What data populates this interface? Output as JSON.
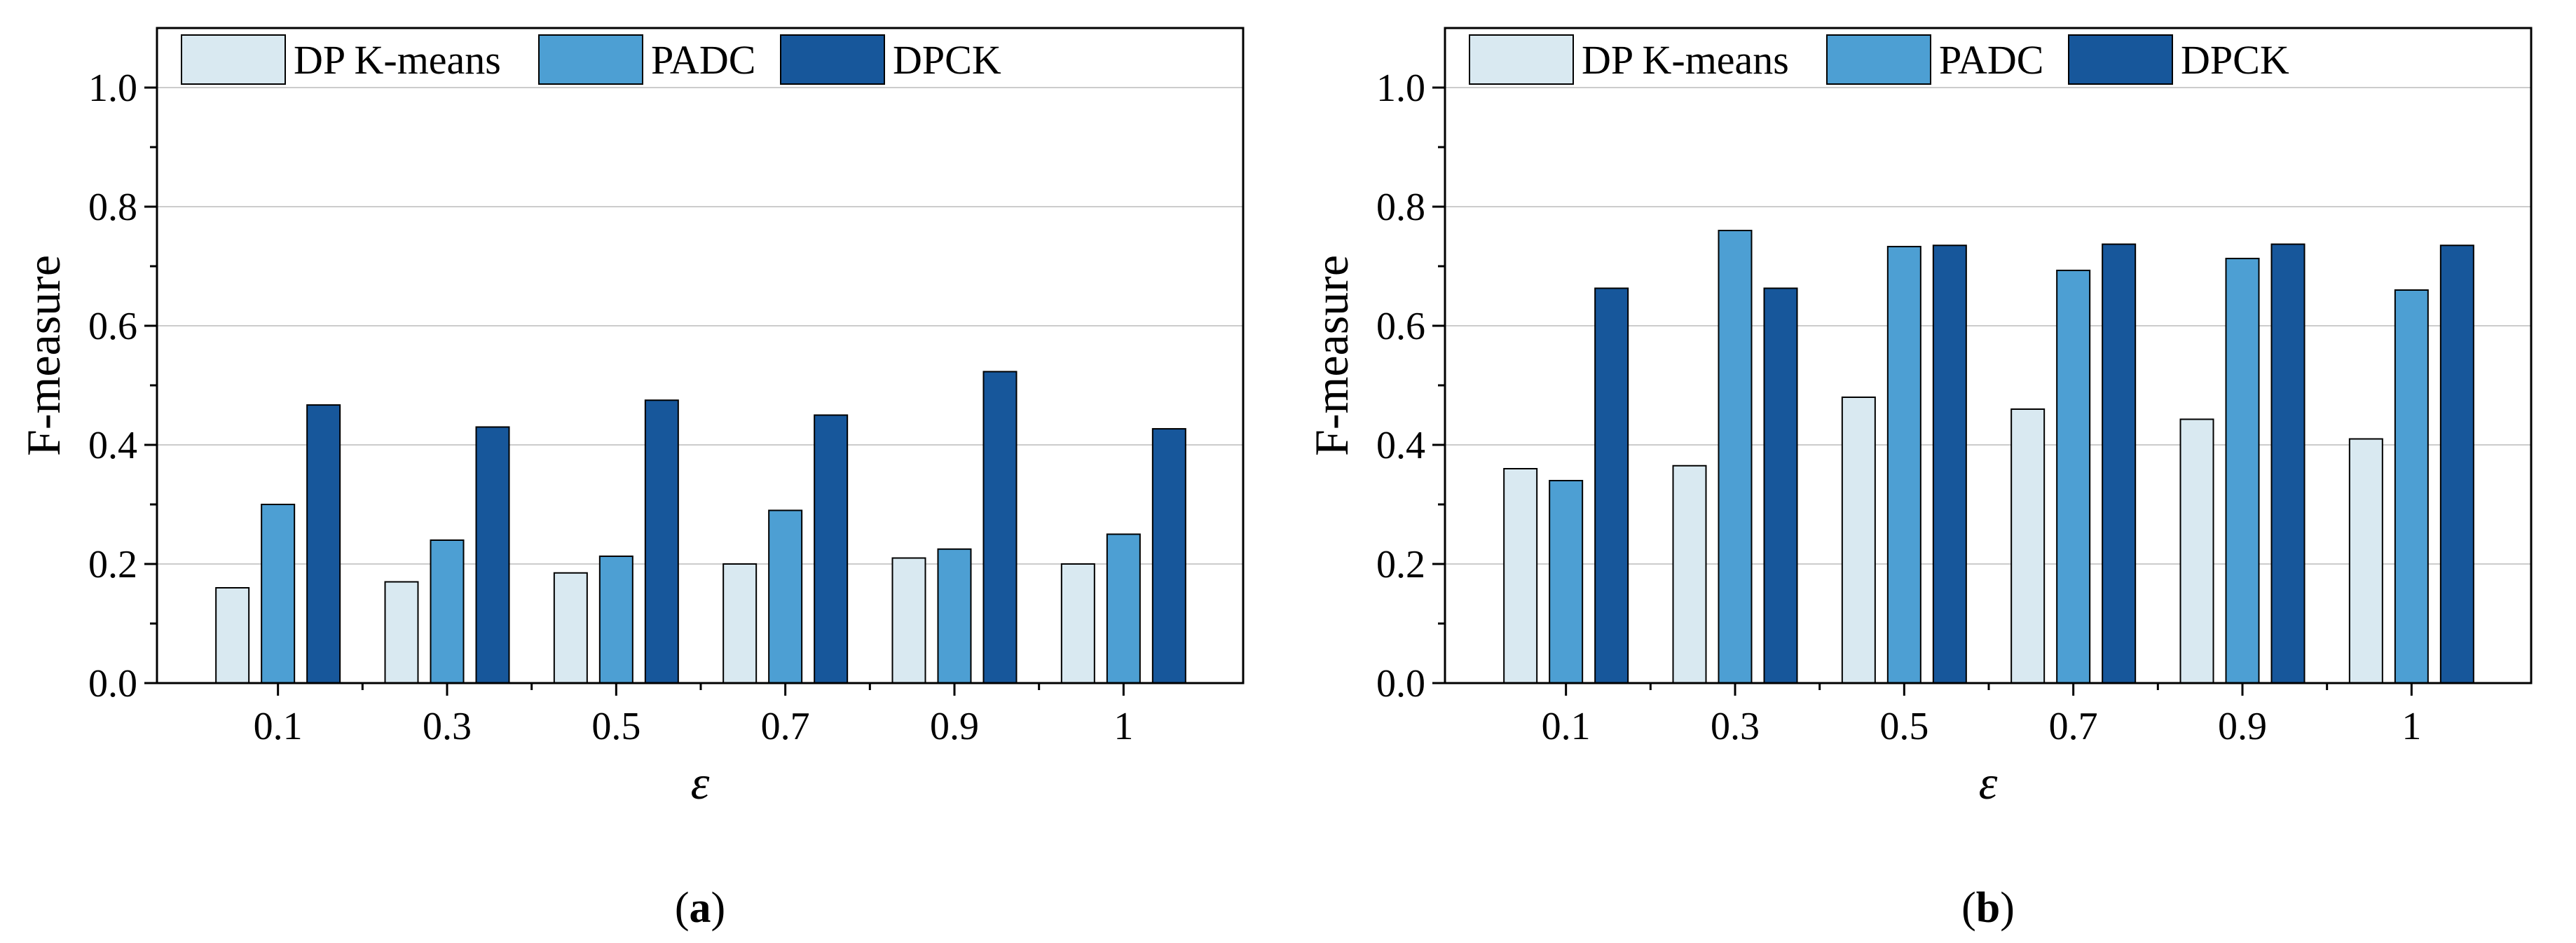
{
  "chart_data": [
    {
      "type": "bar",
      "panel_label": "a",
      "categories": [
        "0.1",
        "0.3",
        "0.5",
        "0.7",
        "0.9",
        "1"
      ],
      "series": [
        {
          "name": "DP K-means",
          "color": "#d9e9f1",
          "values": [
            0.16,
            0.17,
            0.185,
            0.2,
            0.21,
            0.2
          ]
        },
        {
          "name": "PADC",
          "color": "#4d9fd3",
          "values": [
            0.3,
            0.24,
            0.213,
            0.29,
            0.225,
            0.25
          ]
        },
        {
          "name": "DPCK",
          "color": "#17579b",
          "values": [
            0.467,
            0.43,
            0.475,
            0.45,
            0.523,
            0.427
          ]
        }
      ],
      "title": "",
      "xlabel": "ε",
      "ylabel": "F-measure",
      "ylim": [
        0,
        1.1
      ],
      "yticks": [
        "0.0",
        "0.2",
        "0.4",
        "0.6",
        "0.8",
        "1.0"
      ],
      "grid": true,
      "legend": "top"
    },
    {
      "type": "bar",
      "panel_label": "b",
      "categories": [
        "0.1",
        "0.3",
        "0.5",
        "0.7",
        "0.9",
        "1"
      ],
      "series": [
        {
          "name": "DP K-means",
          "color": "#d9e9f1",
          "values": [
            0.36,
            0.365,
            0.48,
            0.46,
            0.443,
            0.41
          ]
        },
        {
          "name": "PADC",
          "color": "#4d9fd3",
          "values": [
            0.34,
            0.76,
            0.733,
            0.693,
            0.713,
            0.66
          ]
        },
        {
          "name": "DPCK",
          "color": "#17579b",
          "values": [
            0.663,
            0.663,
            0.735,
            0.737,
            0.737,
            0.735
          ]
        }
      ],
      "title": "",
      "xlabel": "ε",
      "ylabel": "F-measure",
      "ylim": [
        0,
        1.1
      ],
      "yticks": [
        "0.0",
        "0.2",
        "0.4",
        "0.6",
        "0.8",
        "1.0"
      ],
      "grid": true,
      "legend": "top"
    }
  ]
}
